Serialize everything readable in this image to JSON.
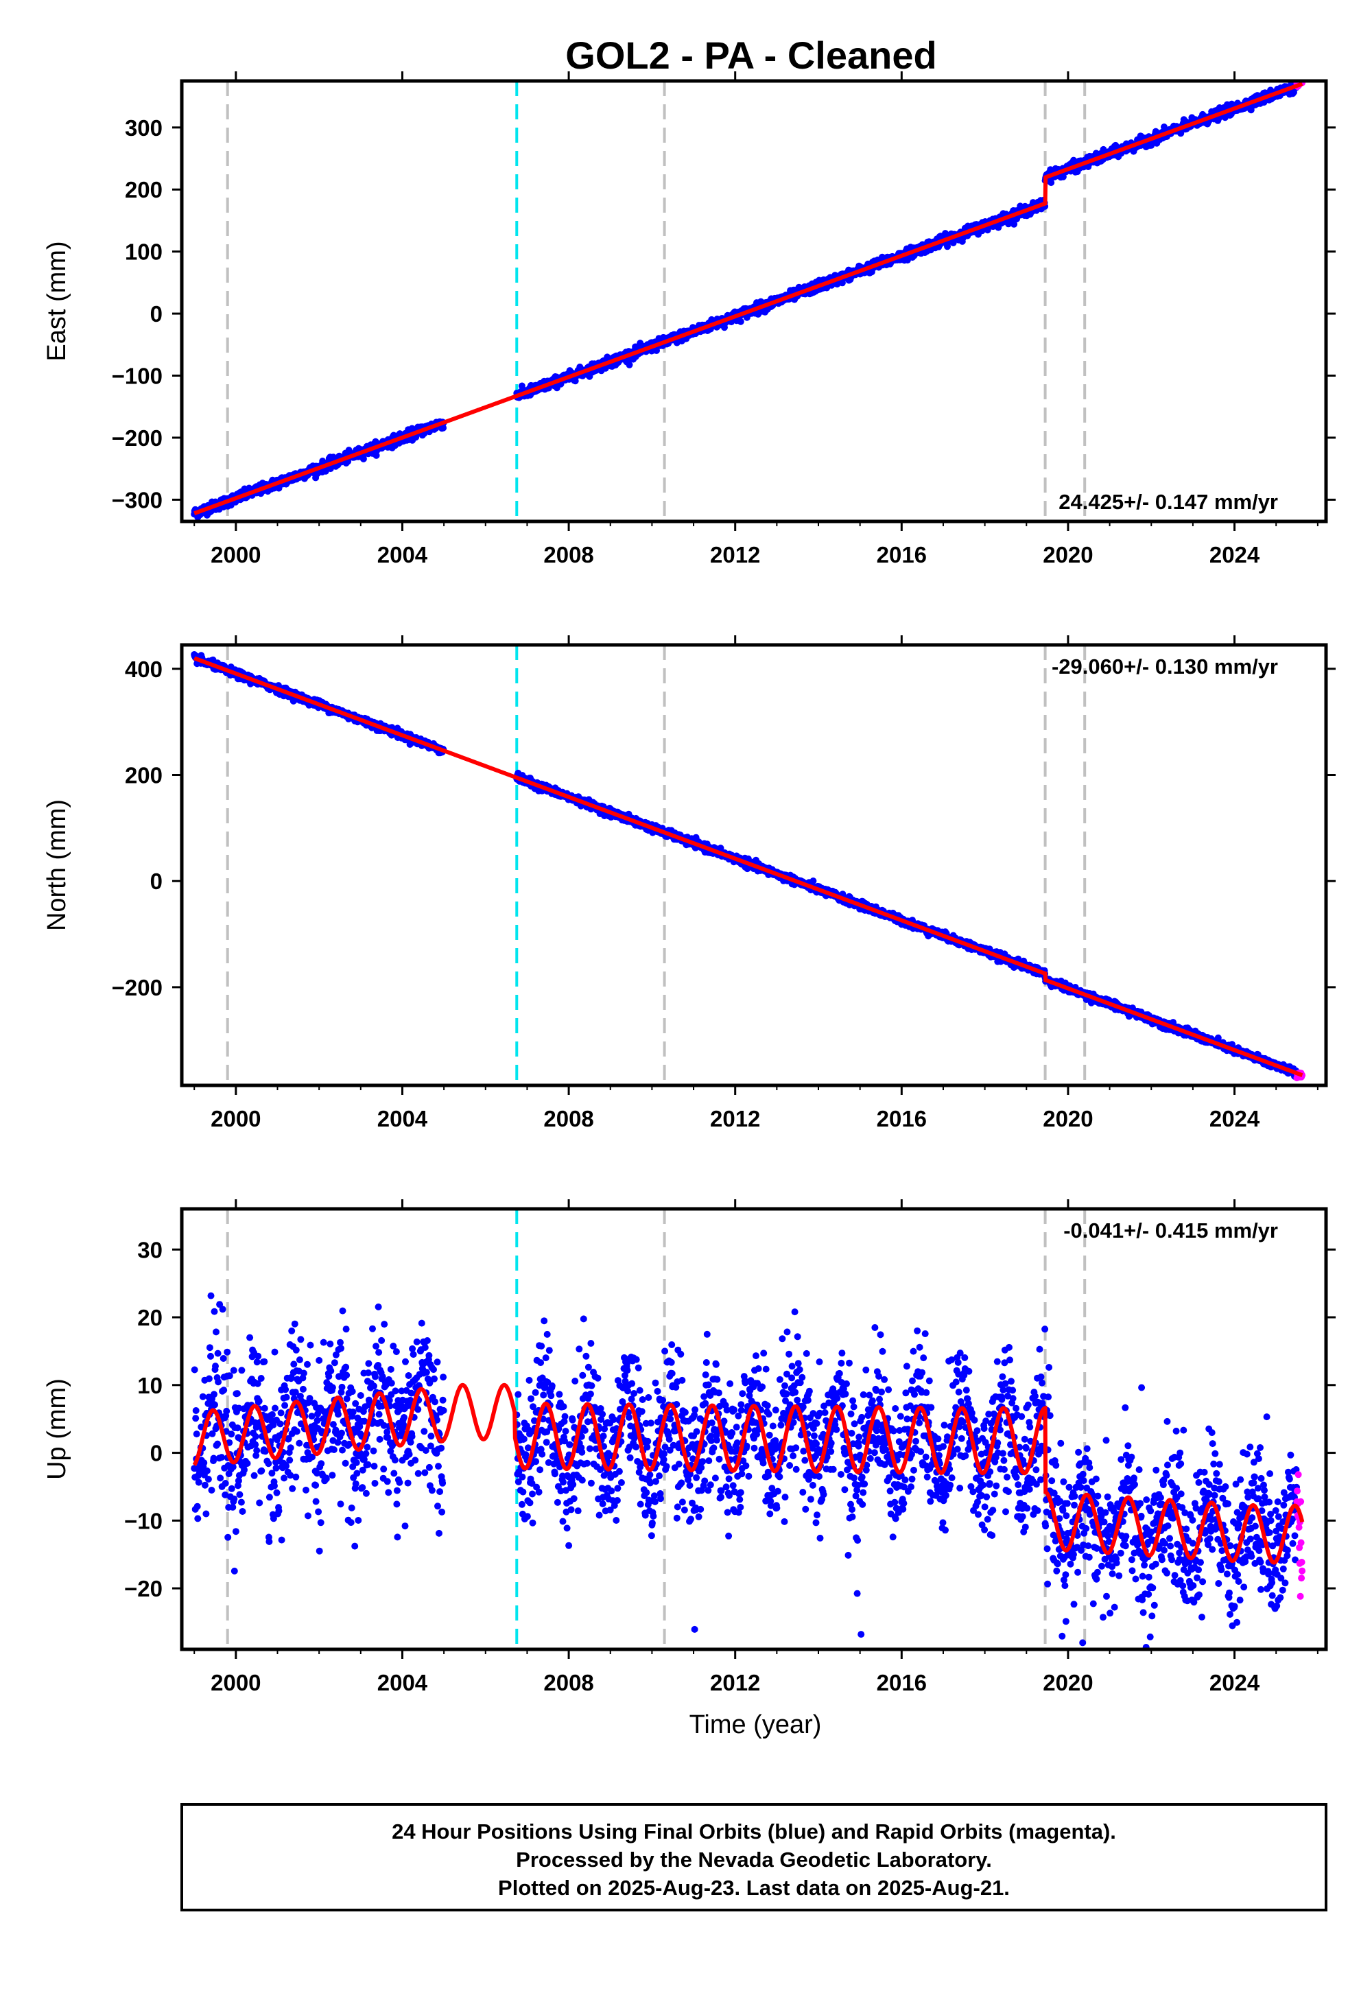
{
  "title": "GOL2  - PA - Cleaned",
  "colors": {
    "final": "#0000ff",
    "rapid": "#ff00ff",
    "model": "#ff0000",
    "antenna_change": "#00e5ee",
    "earthquake": "#c0c0c0"
  },
  "chart_data": [
    {
      "type": "scatter",
      "name": "east",
      "ylabel": "East (mm)",
      "xlabel": "",
      "xlim": [
        1998.7,
        2026.2
      ],
      "ylim": [
        -335,
        375
      ],
      "xticks": [
        2000,
        2004,
        2008,
        2012,
        2016,
        2020,
        2024
      ],
      "yticks": [
        -300,
        -200,
        -100,
        0,
        100,
        200,
        300
      ],
      "rate": "24.425+/- 0.147 mm/yr",
      "rate_position": "bottom-right",
      "velocity": 24.425,
      "offsets": [
        {
          "epoch": 2019.45,
          "size": 42
        }
      ],
      "noise": 4,
      "anchor": {
        "epoch": 1999.0,
        "value": -322
      },
      "end_value": 358
    },
    {
      "type": "scatter",
      "name": "north",
      "ylabel": "North (mm)",
      "xlabel": "",
      "xlim": [
        1998.7,
        2026.2
      ],
      "ylim": [
        -385,
        445
      ],
      "xticks": [
        2000,
        2004,
        2008,
        2012,
        2016,
        2020,
        2024
      ],
      "yticks": [
        -200,
        0,
        200,
        400
      ],
      "rate": "-29.060+/- 0.130 mm/yr",
      "rate_position": "top-right",
      "velocity": -29.06,
      "offsets": [
        {
          "epoch": 2019.45,
          "size": -12
        }
      ],
      "noise": 3.5,
      "anchor": {
        "epoch": 1999.0,
        "value": 420
      },
      "end_value": -363
    },
    {
      "type": "scatter",
      "name": "up",
      "ylabel": "Up (mm)",
      "xlabel": "Time (year)",
      "xlim": [
        1998.7,
        2026.2
      ],
      "ylim": [
        -29,
        36
      ],
      "xticks": [
        2000,
        2004,
        2008,
        2012,
        2016,
        2020,
        2024
      ],
      "yticks": [
        -20,
        -10,
        0,
        10,
        20,
        30
      ],
      "rate": "-0.041+/- 0.415 mm/yr",
      "rate_position": "top-right",
      "segments": [
        {
          "start": 1999.0,
          "end": 2006.7,
          "mean": 6,
          "start_mean": 2,
          "amplitude": 4
        },
        {
          "start": 2006.7,
          "end": 2019.45,
          "mean": 1.8,
          "start_mean": 2.5,
          "amplitude": 4.8
        },
        {
          "start": 2019.45,
          "end": 2025.63,
          "mean": -12,
          "start_mean": -10,
          "amplitude": 4.2
        }
      ],
      "noise": 5
    }
  ],
  "common": {
    "data_start": 1999.0,
    "data_end": 2025.63,
    "gap": [
      2005.0,
      2006.75
    ],
    "rapid_start": 2025.5,
    "vertical_lines": [
      {
        "epoch": 1999.8,
        "kind": "earthquake"
      },
      {
        "epoch": 2006.75,
        "kind": "antenna_change"
      },
      {
        "epoch": 2010.3,
        "kind": "earthquake"
      },
      {
        "epoch": 2019.45,
        "kind": "earthquake"
      },
      {
        "epoch": 2020.4,
        "kind": "earthquake"
      }
    ]
  },
  "footer": {
    "line1": "24 Hour Positions Using Final Orbits (blue) and Rapid Orbits (magenta).",
    "line2": "Processed by the Nevada Geodetic Laboratory.",
    "line3": "Plotted on 2025-Aug-23. Last data on 2025-Aug-21."
  }
}
